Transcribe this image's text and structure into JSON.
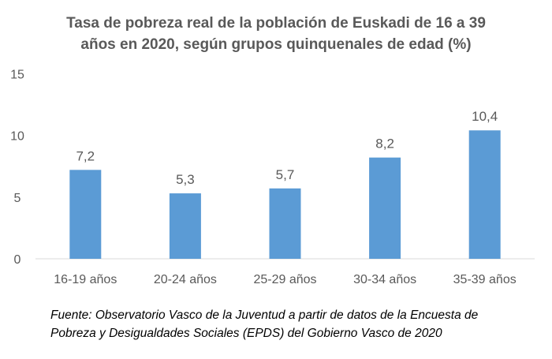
{
  "chart_data": {
    "type": "bar",
    "title": [
      "Tasa de pobreza real de la población de Euskadi de 16 a 39",
      "años en 2020, según grupos quinquenales de edad (%)"
    ],
    "categories": [
      "16-19 años",
      "20-24 años",
      "25-29 años",
      "30-34 años",
      "35-39 años"
    ],
    "values": [
      7.2,
      5.3,
      5.7,
      8.2,
      10.4
    ],
    "data_labels": [
      "7,2",
      "5,3",
      "5,7",
      "8,2",
      "10,4"
    ],
    "xlabel": "",
    "ylabel": "",
    "ylim": [
      0,
      15
    ],
    "yticks": [
      0,
      5,
      10,
      15
    ],
    "grid": false,
    "bar_color": "#5b9bd5"
  },
  "footnote": [
    "Fuente: Observatorio Vasco de la Juventud a partir de datos de la Encuesta de",
    "Pobreza y Desigualdades Sociales (EPDS) del Gobierno Vasco de 2020"
  ]
}
